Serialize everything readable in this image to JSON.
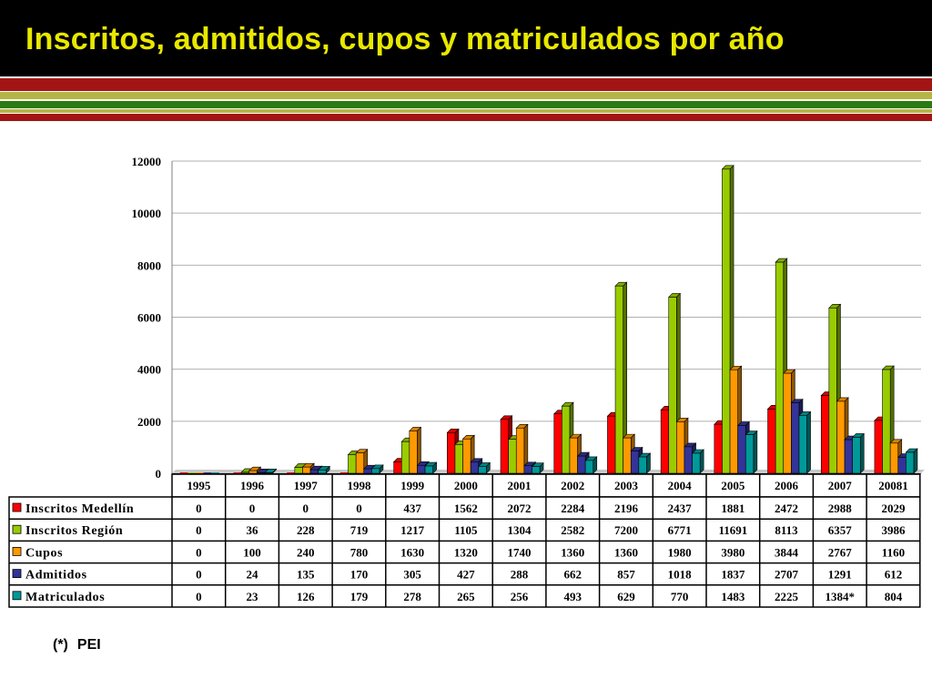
{
  "header": {
    "title": "Inscritos, admitidos, cupos y matriculados por año"
  },
  "footnote": {
    "marker": "(*)",
    "text": "PEI"
  },
  "colors": {
    "header_bg": "#000000",
    "title": "#e8e800",
    "stripe_red": "#a31515",
    "stripe_olive": "#b5b545",
    "stripe_green": "#2b7a12"
  },
  "chart_data": {
    "type": "bar",
    "title": "",
    "xlabel": "",
    "ylabel": "",
    "ylim": [
      0,
      12000
    ],
    "yticks": [
      0,
      2000,
      4000,
      6000,
      8000,
      10000,
      12000
    ],
    "grid": true,
    "categories": [
      "1995",
      "1996",
      "1997",
      "1998",
      "1999",
      "2000",
      "2001",
      "2002",
      "2003",
      "2004",
      "2005",
      "2006",
      "2007",
      "20081"
    ],
    "series": [
      {
        "name": "Inscritos Medellín",
        "color": "#ff0000",
        "values": [
          0,
          0,
          0,
          0,
          437,
          1562,
          2072,
          2284,
          2196,
          2437,
          1881,
          2472,
          2988,
          2029
        ],
        "labels": [
          "0",
          "0",
          "0",
          "0",
          "437",
          "1562",
          "2072",
          "2284",
          "2196",
          "2437",
          "1881",
          "2472",
          "2988",
          "2029"
        ]
      },
      {
        "name": "Inscritos Región",
        "color": "#99cc00",
        "values": [
          0,
          36,
          228,
          719,
          1217,
          1105,
          1304,
          2582,
          7200,
          6771,
          11691,
          8113,
          6357,
          3986
        ],
        "labels": [
          "0",
          "36",
          "228",
          "719",
          "1217",
          "1105",
          "1304",
          "2582",
          "7200",
          "6771",
          "11691",
          "8113",
          "6357",
          "3986"
        ]
      },
      {
        "name": "Cupos",
        "color": "#ff9900",
        "values": [
          0,
          100,
          240,
          780,
          1630,
          1320,
          1740,
          1360,
          1360,
          1980,
          3980,
          3844,
          2767,
          1160
        ],
        "labels": [
          "0",
          "100",
          "240",
          "780",
          "1630",
          "1320",
          "1740",
          "1360",
          "1360",
          "1980",
          "3980",
          "3844",
          "2767",
          "1160"
        ]
      },
      {
        "name": "Admitidos",
        "color": "#333399",
        "values": [
          0,
          24,
          135,
          170,
          305,
          427,
          288,
          662,
          857,
          1018,
          1837,
          2707,
          1291,
          612
        ],
        "labels": [
          "0",
          "24",
          "135",
          "170",
          "305",
          "427",
          "288",
          "662",
          "857",
          "1018",
          "1837",
          "2707",
          "1291",
          "612"
        ]
      },
      {
        "name": "Matriculados",
        "color": "#009999",
        "values": [
          0,
          23,
          126,
          179,
          278,
          265,
          256,
          493,
          629,
          770,
          1483,
          2225,
          1384,
          804
        ],
        "labels": [
          "0",
          "23",
          "126",
          "179",
          "278",
          "265",
          "256",
          "493",
          "629",
          "770",
          "1483",
          "2225",
          "1384*",
          "804"
        ]
      }
    ]
  }
}
